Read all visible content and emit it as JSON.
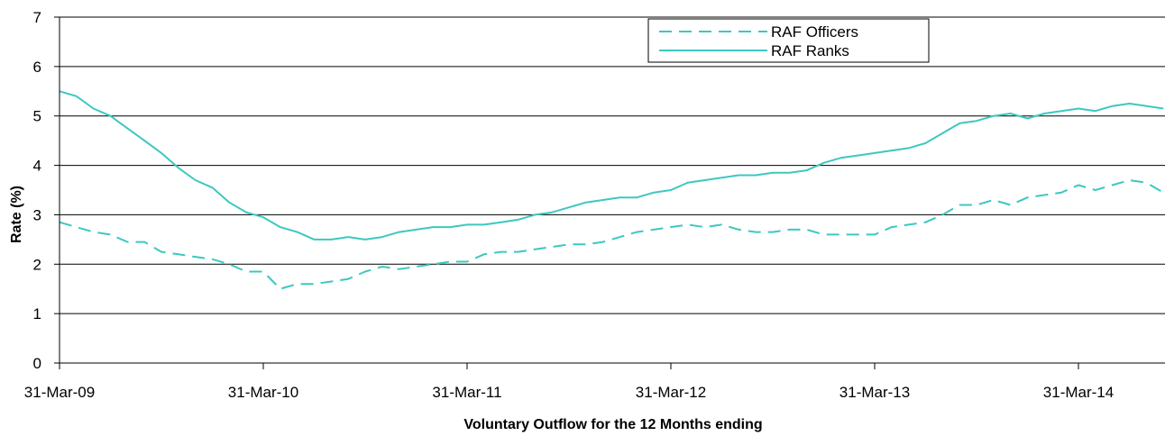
{
  "chart_data": {
    "type": "line",
    "title": "",
    "xlabel": "Voluntary Outflow for the 12 Months ending",
    "ylabel": "Rate (%)",
    "ylim": [
      0,
      7
    ],
    "yticks": [
      0,
      1,
      2,
      3,
      4,
      5,
      6,
      7
    ],
    "xtick_labels": [
      "31-Mar-09",
      "31-Mar-10",
      "31-Mar-11",
      "31-Mar-12",
      "31-Mar-13",
      "31-Mar-14"
    ],
    "x_start": "31-Mar-09",
    "x_end": "31-Aug-14",
    "grid": true,
    "legend_position": "top-right",
    "colors": {
      "series": "#3cc8c0",
      "grid": "#000000",
      "axis": "#000000"
    },
    "series": [
      {
        "name": "RAF Officers",
        "style": "dashed",
        "values": [
          2.85,
          2.75,
          2.65,
          2.6,
          2.45,
          2.45,
          2.25,
          2.2,
          2.15,
          2.1,
          2.0,
          1.85,
          1.85,
          1.5,
          1.6,
          1.6,
          1.65,
          1.7,
          1.85,
          1.95,
          1.9,
          1.95,
          2.0,
          2.05,
          2.05,
          2.2,
          2.25,
          2.25,
          2.3,
          2.35,
          2.4,
          2.4,
          2.45,
          2.55,
          2.65,
          2.7,
          2.75,
          2.8,
          2.75,
          2.8,
          2.7,
          2.65,
          2.65,
          2.7,
          2.7,
          2.6,
          2.6,
          2.6,
          2.6,
          2.75,
          2.8,
          2.85,
          3.0,
          3.2,
          3.2,
          3.3,
          3.2,
          3.35,
          3.4,
          3.45,
          3.6,
          3.5,
          3.6,
          3.7,
          3.65,
          3.45
        ]
      },
      {
        "name": "RAF Ranks",
        "style": "solid",
        "values": [
          5.5,
          5.4,
          5.15,
          5.0,
          4.75,
          4.5,
          4.25,
          3.95,
          3.7,
          3.55,
          3.25,
          3.05,
          2.95,
          2.75,
          2.65,
          2.5,
          2.5,
          2.55,
          2.5,
          2.55,
          2.65,
          2.7,
          2.75,
          2.75,
          2.8,
          2.8,
          2.85,
          2.9,
          3.0,
          3.05,
          3.15,
          3.25,
          3.3,
          3.35,
          3.35,
          3.45,
          3.5,
          3.65,
          3.7,
          3.75,
          3.8,
          3.8,
          3.85,
          3.85,
          3.9,
          4.05,
          4.15,
          4.2,
          4.25,
          4.3,
          4.35,
          4.45,
          4.65,
          4.85,
          4.9,
          5.0,
          5.05,
          4.95,
          5.05,
          5.1,
          5.15,
          5.1,
          5.2,
          5.25,
          5.2,
          5.15
        ]
      }
    ]
  }
}
